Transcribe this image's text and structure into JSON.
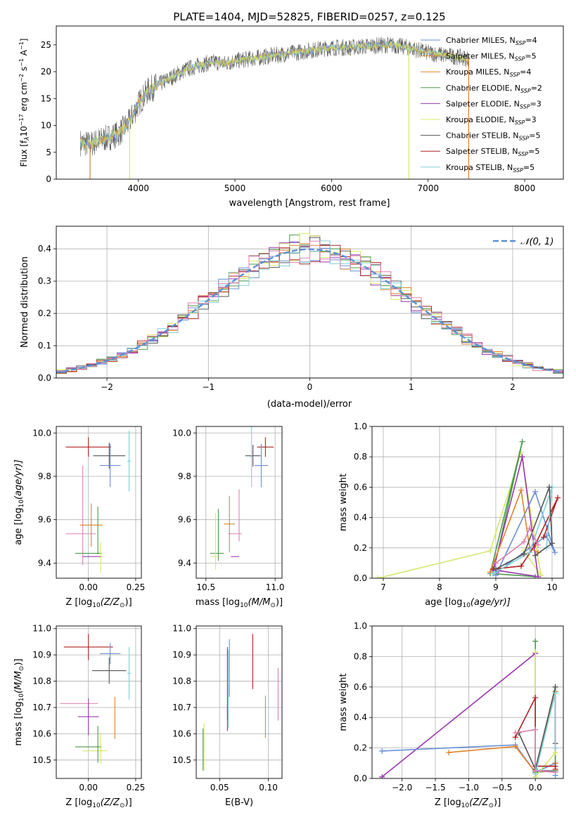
{
  "title": "PLATE=1404, MJD=52825, FIBERID=0257, z=0.125",
  "colors": [
    "#6a8fd8",
    "#e0832a",
    "#4c9a4c",
    "#9a36b0",
    "#d4e86a",
    "#555555",
    "#b22222",
    "#7fd0d8",
    "#e080b0"
  ],
  "chart_data": [
    {
      "name": "spectrum",
      "type": "line",
      "title": "PLATE=1404, MJD=52825, FIBERID=0257, z=0.125",
      "xlabel": "wavelength [Angstrom, rest frame]",
      "ylabel_main": "Flux [f",
      "ylabel_sub": "λ",
      "ylabel_rest": "10",
      "ylabel_exp": "−17",
      "ylabel_units": " erg cm",
      "ylabel_exp2": "−2",
      "ylabel_units2": " s",
      "ylabel_exp3": "−1",
      "ylabel_units3": " A",
      "ylabel_exp4": "−1",
      "ylabel_close": "]",
      "xlim": [
        3150,
        8400
      ],
      "ylim": [
        0,
        28.5
      ],
      "xticks": [
        "4000",
        "5000",
        "6000",
        "7000",
        "8000"
      ],
      "xtick_values": [
        4000,
        5000,
        6000,
        7000,
        8000
      ],
      "yticks": [
        "0",
        "5",
        "10",
        "15",
        "20",
        "25"
      ],
      "ytick_values": [
        0,
        5,
        10,
        15,
        20,
        25
      ],
      "legend": [
        {
          "prefix": "Chabrier MILES, N",
          "sub": "SSP",
          "suffix": "=4",
          "color": "#6a8fd8"
        },
        {
          "prefix": "Salpeter MILES, N",
          "sub": "SSP",
          "suffix": "=5",
          "color": "#e0832a"
        },
        {
          "prefix": "Kroupa MILES, N",
          "sub": "SSP",
          "suffix": "=4",
          "color": "#e0832a"
        },
        {
          "prefix": "Chabrier ELODIE, N",
          "sub": "SSP",
          "suffix": "=2",
          "color": "#4c9a4c"
        },
        {
          "prefix": "Salpeter ELODIE, N",
          "sub": "SSP",
          "suffix": "=3",
          "color": "#9a36b0"
        },
        {
          "prefix": "Kroupa ELODIE, N",
          "sub": "SSP",
          "suffix": "=3",
          "color": "#d4e86a"
        },
        {
          "prefix": "Chabrier STELIB, N",
          "sub": "SSP",
          "suffix": "=5",
          "color": "#555555"
        },
        {
          "prefix": "Salpeter STELIB, N",
          "sub": "SSP",
          "suffix": "=5",
          "color": "#b22222"
        },
        {
          "prefix": "Kroupa STELIB, N",
          "sub": "SSP",
          "suffix": "=5",
          "color": "#7fd0d8"
        }
      ],
      "continuum": {
        "x": [
          3400,
          3500,
          3600,
          3700,
          3800,
          3900,
          4000,
          4100,
          4200,
          4300,
          4400,
          4500,
          4600,
          4700,
          4800,
          4900,
          5000,
          5200,
          5400,
          5600,
          5800,
          6000,
          6200,
          6400,
          6600,
          6800,
          7000,
          7200,
          7400
        ],
        "y": [
          6.8,
          6.5,
          7.2,
          7.8,
          8.5,
          10.5,
          14.0,
          16.5,
          17.5,
          18.5,
          19.5,
          20.5,
          21.0,
          21.5,
          21.8,
          21.5,
          22.0,
          22.5,
          23.0,
          23.5,
          24.0,
          24.5,
          24.5,
          24.8,
          25.0,
          24.5,
          23.5,
          23.0,
          22.5
        ]
      },
      "drop_lines": [
        {
          "x": 3500,
          "color": "#e0832a"
        },
        {
          "x": 3910,
          "color": "#d4e86a"
        },
        {
          "x": 6800,
          "color": "#d4e86a"
        },
        {
          "x": 7420,
          "color": "#e0832a"
        }
      ]
    },
    {
      "name": "residual-histogram",
      "type": "step",
      "xlabel": "(data-model)/error",
      "ylabel": "Normed distribution",
      "xlim": [
        -2.5,
        2.5
      ],
      "ylim": [
        0,
        0.47
      ],
      "xticks": [
        "−2",
        "−1",
        "0",
        "1",
        "2"
      ],
      "xtick_values": [
        -2,
        -1,
        0,
        1,
        2
      ],
      "yticks": [
        "0.0",
        "0.1",
        "0.2",
        "0.3",
        "0.4"
      ],
      "ytick_values": [
        0,
        0.1,
        0.2,
        0.3,
        0.4
      ],
      "legend_label": "𝒩(0, 1)",
      "gauss_color": "#5b8fd4",
      "bin_width": 0.1
    },
    {
      "name": "age-vs-Z",
      "type": "errorbar",
      "xlabel": "Z [log",
      "xlabel_sub": "10",
      "xlabel_rest": "(Z/Z",
      "xlabel_sun": "⊙",
      "xlabel_close": ")]",
      "ylabel": "age  [log",
      "ylabel_sub": "10",
      "ylabel_rest": "(age/yr)]",
      "xlim": [
        -0.17,
        0.28
      ],
      "ylim": [
        9.33,
        10.03
      ],
      "xticks": [
        "0.00",
        "0.25"
      ],
      "xtick_values": [
        0,
        0.25
      ],
      "yticks": [
        "9.4",
        "9.6",
        "9.8",
        "10.0"
      ],
      "ytick_values": [
        9.4,
        9.6,
        9.8,
        10.0
      ],
      "points": [
        {
          "x": 0.0,
          "y": 9.935,
          "xerr": 0.12,
          "yerr": 0.045,
          "color": "#b22222"
        },
        {
          "x": 0.11,
          "y": 9.895,
          "xerr": 0.085,
          "yerr": 0.06,
          "color": "#555555"
        },
        {
          "x": 0.115,
          "y": 9.85,
          "xerr": 0.055,
          "yerr": 0.1,
          "color": "#6a8fd8"
        },
        {
          "x": 0.215,
          "y": 9.87,
          "xerr": 0.01,
          "yerr": 0.14,
          "color": "#7fd0d8"
        },
        {
          "x": -0.03,
          "y": 9.62,
          "xerr": 0.0,
          "yerr": 0.23,
          "color": "#e080b0"
        },
        {
          "x": 0.05,
          "y": 9.55,
          "xerr": 0.0,
          "yerr": 0.11,
          "color": "#4c9a4c"
        },
        {
          "x": 0.015,
          "y": 9.575,
          "xerr": 0.06,
          "yerr": 0.1,
          "color": "#e0832a"
        },
        {
          "x": -0.04,
          "y": 9.535,
          "xerr": 0.08,
          "yerr": 0.0,
          "color": "#e080b0"
        },
        {
          "x": 0.0,
          "y": 9.445,
          "xerr": 0.07,
          "yerr": 0.0,
          "color": "#4c9a4c"
        },
        {
          "x": 0.02,
          "y": 9.43,
          "xerr": 0.05,
          "yerr": 0.0,
          "color": "#9a36b0"
        },
        {
          "x": 0.065,
          "y": 9.425,
          "xerr": 0.0,
          "yerr": 0.07,
          "color": "#d4e86a"
        }
      ]
    },
    {
      "name": "age-vs-mass",
      "type": "errorbar",
      "xlabel": "mass [log",
      "xlabel_sub": "10",
      "xlabel_rest": "(M/M",
      "xlabel_sun": "⊙",
      "xlabel_close": ")]",
      "xlim": [
        10.43,
        11.05
      ],
      "ylim": [
        9.33,
        10.03
      ],
      "xticks": [
        "10.5",
        "11.0"
      ],
      "xtick_values": [
        10.5,
        11.0
      ],
      "yticks": [
        "9.4",
        "9.6",
        "9.8",
        "10.0"
      ],
      "ytick_values": [
        9.4,
        9.6,
        9.8,
        10.0
      ],
      "points": [
        {
          "x": 10.93,
          "y": 9.935,
          "xerr": 0.06,
          "yerr": 0.045,
          "color": "#b22222"
        },
        {
          "x": 10.84,
          "y": 9.895,
          "xerr": 0.055,
          "yerr": 0.05,
          "color": "#555555"
        },
        {
          "x": 10.9,
          "y": 9.85,
          "xerr": 0.05,
          "yerr": 0.1,
          "color": "#6a8fd8"
        },
        {
          "x": 10.83,
          "y": 9.89,
          "xerr": 0.01,
          "yerr": 0.14,
          "color": "#7fd0d8"
        },
        {
          "x": 10.74,
          "y": 9.62,
          "xerr": 0.0,
          "yerr": 0.12,
          "color": "#e080b0"
        },
        {
          "x": 10.67,
          "y": 9.58,
          "xerr": 0.04,
          "yerr": 0.13,
          "color": "#e0832a"
        },
        {
          "x": 10.71,
          "y": 9.535,
          "xerr": 0.05,
          "yerr": 0.0,
          "color": "#e080b0"
        },
        {
          "x": 10.58,
          "y": 9.445,
          "xerr": 0.05,
          "yerr": 0.0,
          "color": "#4c9a4c"
        },
        {
          "x": 10.59,
          "y": 9.53,
          "xerr": 0.0,
          "yerr": 0.12,
          "color": "#4c9a4c"
        },
        {
          "x": 10.71,
          "y": 9.43,
          "xerr": 0.03,
          "yerr": 0.0,
          "color": "#9a36b0"
        },
        {
          "x": 10.56,
          "y": 9.43,
          "xerr": 0.02,
          "yerr": 0.0,
          "color": "#d4e86a"
        },
        {
          "x": 10.57,
          "y": 9.5,
          "xerr": 0.0,
          "yerr": 0.13,
          "color": "#d4e86a"
        }
      ]
    },
    {
      "name": "weight-vs-age",
      "type": "line",
      "xlabel": "age  [log",
      "xlabel_sub": "10",
      "xlabel_rest": "(age/yr)]",
      "ylabel": "mass weight",
      "xlim": [
        6.8,
        10.2
      ],
      "ylim": [
        0,
        1.0
      ],
      "xticks": [
        "7",
        "8",
        "9",
        "10"
      ],
      "xtick_values": [
        7,
        8,
        9,
        10
      ],
      "yticks": [
        "0.0",
        "0.2",
        "0.4",
        "0.6",
        "0.8",
        "1.0"
      ],
      "ytick_values": [
        0,
        0.2,
        0.4,
        0.6,
        0.8,
        1.0
      ],
      "series": [
        {
          "color": "#d4e86a",
          "x": [
            6.9,
            8.9,
            9.45,
            9.8,
            9.5
          ],
          "y": [
            0.0,
            0.18,
            0.83,
            0.02,
            0.18
          ]
        },
        {
          "color": "#4c9a4c",
          "x": [
            8.9,
            9.47,
            8.95,
            9.7
          ],
          "y": [
            0.03,
            0.9,
            0.03,
            0.01
          ]
        },
        {
          "color": "#9a36b0",
          "x": [
            8.95,
            9.47,
            9.75,
            9.05
          ],
          "y": [
            0.05,
            0.8,
            0.01,
            0.05
          ]
        },
        {
          "color": "#e0832a",
          "x": [
            8.9,
            9.45,
            9.6,
            9.75
          ],
          "y": [
            0.04,
            0.58,
            0.2,
            0.17
          ]
        },
        {
          "color": "#6a8fd8",
          "x": [
            9.0,
            9.7,
            10.05,
            9.9,
            9.2
          ],
          "y": [
            0.02,
            0.57,
            0.17,
            0.28,
            0.09
          ]
        },
        {
          "color": "#b22222",
          "x": [
            8.95,
            9.45,
            9.7,
            10.1,
            9.85
          ],
          "y": [
            0.06,
            0.08,
            0.22,
            0.53,
            0.27
          ]
        },
        {
          "color": "#7fd0d8",
          "x": [
            8.95,
            9.6,
            10.0,
            9.9
          ],
          "y": [
            0.03,
            0.17,
            0.6,
            0.2
          ]
        },
        {
          "color": "#555555",
          "x": [
            9.0,
            9.5,
            9.95,
            10.0,
            9.7
          ],
          "y": [
            0.06,
            0.16,
            0.6,
            0.23,
            0.15
          ]
        },
        {
          "color": "#e080b0",
          "x": [
            9.0,
            9.5,
            9.6,
            9.75
          ],
          "y": [
            0.1,
            0.24,
            0.33,
            0.22
          ]
        }
      ]
    },
    {
      "name": "mass-vs-Z",
      "type": "errorbar",
      "xlabel": "Z [log",
      "xlabel_sub": "10",
      "xlabel_rest": "(Z/Z",
      "xlabel_sun": "⊙",
      "xlabel_close": ")]",
      "ylabel": "mass [log",
      "ylabel_sub": "10",
      "ylabel_rest": "(M/M",
      "ylabel_sun": "⊙",
      "ylabel_close": ")]",
      "xlim": [
        -0.17,
        0.28
      ],
      "ylim": [
        10.43,
        11.01
      ],
      "xticks": [
        "0.00",
        "0.25"
      ],
      "xtick_values": [
        0,
        0.25
      ],
      "yticks": [
        "10.5",
        "10.6",
        "10.7",
        "10.8",
        "10.9",
        "11.0"
      ],
      "ytick_values": [
        10.5,
        10.6,
        10.7,
        10.8,
        10.9,
        11.0
      ],
      "points": [
        {
          "x": 0.0,
          "y": 10.93,
          "xerr": 0.13,
          "yerr": 0.05,
          "color": "#b22222"
        },
        {
          "x": 0.115,
          "y": 10.905,
          "xerr": 0.055,
          "yerr": 0.04,
          "color": "#6a8fd8"
        },
        {
          "x": 0.11,
          "y": 10.84,
          "xerr": 0.09,
          "yerr": 0.05,
          "color": "#555555"
        },
        {
          "x": 0.215,
          "y": 10.83,
          "xerr": 0.01,
          "yerr": 0.1,
          "color": "#7fd0d8"
        },
        {
          "x": -0.05,
          "y": 10.715,
          "xerr": 0.1,
          "yerr": 0.0,
          "color": "#e080b0"
        },
        {
          "x": 0.0,
          "y": 10.665,
          "xerr": 0.055,
          "yerr": 0.07,
          "color": "#9a36b0"
        },
        {
          "x": 0.14,
          "y": 10.66,
          "xerr": 0.0,
          "yerr": 0.08,
          "color": "#e0832a"
        },
        {
          "x": 0.0,
          "y": 10.55,
          "xerr": 0.07,
          "yerr": 0.0,
          "color": "#4c9a4c"
        },
        {
          "x": 0.035,
          "y": 10.535,
          "xerr": 0.065,
          "yerr": 0.0,
          "color": "#d4e86a"
        },
        {
          "x": 0.05,
          "y": 10.56,
          "xerr": 0.0,
          "yerr": 0.07,
          "color": "#4c9a4c"
        },
        {
          "x": 0.065,
          "y": 10.545,
          "xerr": 0.0,
          "yerr": 0.06,
          "color": "#d4e86a"
        }
      ]
    },
    {
      "name": "mass-vs-EBV",
      "type": "errorbar",
      "xlabel": "E(B-V)",
      "xlim": [
        0.026,
        0.114
      ],
      "ylim": [
        10.43,
        11.01
      ],
      "xticks": [
        "0.05",
        "0.10"
      ],
      "xtick_values": [
        0.05,
        0.1
      ],
      "yticks": [
        "10.5",
        "10.6",
        "10.7",
        "10.8",
        "10.9",
        "11.0"
      ],
      "ytick_values": [
        10.5,
        10.6,
        10.7,
        10.8,
        10.9,
        11.0
      ],
      "points": [
        {
          "x": 0.084,
          "y": 10.875,
          "xerr": 0,
          "yerr": 0.105,
          "color": "#b22222"
        },
        {
          "x": 0.06,
          "y": 10.85,
          "xerr": 0,
          "yerr": 0.11,
          "color": "#6a8fd8"
        },
        {
          "x": 0.058,
          "y": 10.79,
          "xerr": 0,
          "yerr": 0.14,
          "color": "#555555"
        },
        {
          "x": 0.059,
          "y": 10.77,
          "xerr": 0,
          "yerr": 0.15,
          "color": "#7fd0d8"
        },
        {
          "x": 0.058,
          "y": 10.66,
          "xerr": 0,
          "yerr": 0.05,
          "color": "#9a36b0"
        },
        {
          "x": 0.097,
          "y": 10.665,
          "xerr": 0,
          "yerr": 0.08,
          "color": "#e0832a"
        },
        {
          "x": 0.11,
          "y": 10.75,
          "xerr": 0,
          "yerr": 0.1,
          "color": "#e080b0"
        },
        {
          "x": 0.034,
          "y": 10.55,
          "xerr": 0,
          "yerr": 0.09,
          "color": "#d4e86a"
        },
        {
          "x": 0.033,
          "y": 10.54,
          "xerr": 0,
          "yerr": 0.08,
          "color": "#4c9a4c"
        }
      ]
    },
    {
      "name": "weight-vs-Z",
      "type": "line",
      "xlabel": "Z [log",
      "xlabel_sub": "10",
      "xlabel_rest": "(Z/Z",
      "xlabel_sun": "⊙",
      "xlabel_close": ")]",
      "ylabel": "mass weight",
      "xlim": [
        -2.45,
        0.42
      ],
      "ylim": [
        0,
        1.0
      ],
      "xticks": [
        "−2.0",
        "−1.5",
        "−1.0",
        "−0.5",
        "0.0"
      ],
      "xtick_values": [
        -2.0,
        -1.5,
        -1.0,
        -0.5,
        0.0
      ],
      "yticks": [
        "0.0",
        "0.2",
        "0.4",
        "0.6",
        "0.8",
        "1.0"
      ],
      "ytick_values": [
        0,
        0.2,
        0.4,
        0.6,
        0.8,
        1.0
      ],
      "series": [
        {
          "color": "#9a36b0",
          "x": [
            -2.3,
            0.0,
            0.0,
            0.3
          ],
          "y": [
            0.01,
            0.82,
            0.05,
            0.05
          ]
        },
        {
          "color": "#6a8fd8",
          "x": [
            -2.3,
            -0.3,
            0.0,
            0.3,
            0.3
          ],
          "y": [
            0.18,
            0.22,
            0.04,
            0.1,
            0.02
          ]
        },
        {
          "color": "#e0832a",
          "x": [
            -1.3,
            -0.3,
            0.0,
            0.3,
            0.3
          ],
          "y": [
            0.17,
            0.21,
            0.04,
            0.57,
            0.1
          ]
        },
        {
          "color": "#4c9a4c",
          "x": [
            0.0,
            0.0,
            0.3,
            0.3
          ],
          "y": [
            0.9,
            0.04,
            0.05,
            0.6
          ]
        },
        {
          "color": "#d4e86a",
          "x": [
            0.0,
            0.0,
            0.3
          ],
          "y": [
            0.83,
            0.01,
            0.17
          ]
        },
        {
          "color": "#b22222",
          "x": [
            -0.3,
            0.0,
            0.0,
            0.3,
            0.3
          ],
          "y": [
            0.27,
            0.53,
            0.08,
            0.08,
            0.06
          ]
        },
        {
          "color": "#555555",
          "x": [
            -0.25,
            0.0,
            0.3,
            0.3
          ],
          "y": [
            0.3,
            0.06,
            0.6,
            0.23
          ]
        },
        {
          "color": "#7fd0d8",
          "x": [
            0.0,
            0.3,
            0.3
          ],
          "y": [
            0.03,
            0.56,
            0.2
          ]
        },
        {
          "color": "#e080b0",
          "x": [
            -0.3,
            0.0,
            0.0,
            0.3
          ],
          "y": [
            0.3,
            0.32,
            0.05,
            0.04
          ]
        }
      ]
    }
  ]
}
